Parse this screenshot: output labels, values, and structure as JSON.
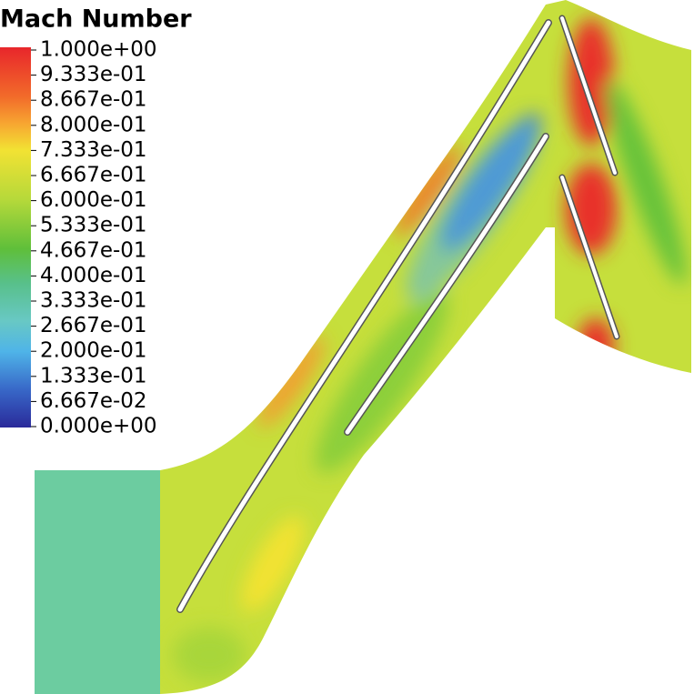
{
  "legend": {
    "title": "Mach Number",
    "labels": [
      "1.000e+00",
      "9.333e-01",
      "8.667e-01",
      "8.000e-01",
      "7.333e-01",
      "6.667e-01",
      "6.000e-01",
      "5.333e-01",
      "4.667e-01",
      "4.000e-01",
      "3.333e-01",
      "2.667e-01",
      "2.000e-01",
      "1.333e-01",
      "6.667e-02",
      "0.000e+00"
    ]
  }
}
